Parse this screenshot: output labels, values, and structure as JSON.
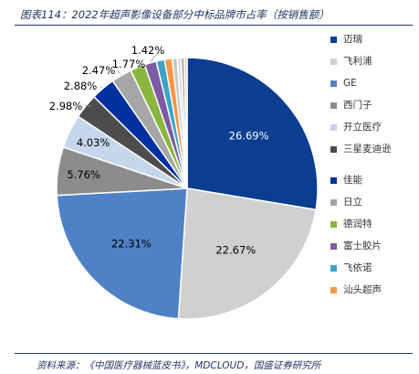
{
  "title": "图表114：2022年超声影像设备部分中标品牌市占率（按销售额）",
  "source": "资料来源：《中国医疗器械蓝皮书》，MDCLOUD，国盛证券研究所",
  "chart_data": {
    "type": "pie",
    "start_angle_deg": 0,
    "direction": "clockwise",
    "slices": [
      {
        "label": "迈瑞",
        "value": 26.69,
        "display": "26.69%",
        "color": "#0b3d91",
        "label_color": "#ffffff"
      },
      {
        "label": "飞利浦",
        "value": 22.67,
        "display": "22.67%",
        "color": "#d0d0d0",
        "label_color": "#000000"
      },
      {
        "label": "GE",
        "value": 22.31,
        "display": "22.31%",
        "color": "#4f81c7",
        "label_color": "#000000"
      },
      {
        "label": "西门子",
        "value": 5.76,
        "display": "5.76%",
        "color": "#8c8c8c",
        "label_color": "#000000"
      },
      {
        "label": "开立医疗",
        "value": 4.03,
        "display": "4.03%",
        "color": "#c6d6ec",
        "label_color": "#000000"
      },
      {
        "label": "三星麦迪逊",
        "value": 2.98,
        "display": "2.98%",
        "color": "#4d4d4d",
        "label_color": "#000000"
      },
      {
        "label": "佳能",
        "value": 2.88,
        "display": "2.88%",
        "color": "#002fa0",
        "label_color": "#000000"
      },
      {
        "label": "日立",
        "value": 2.47,
        "display": "2.47%",
        "color": "#a6a6a6",
        "label_color": "#000000"
      },
      {
        "label": "德润特",
        "value": 1.77,
        "display": "1.77%",
        "color": "#8ab63f",
        "label_color": "#000000"
      },
      {
        "label": "富士胶片",
        "value": 1.42,
        "display": "1.42%",
        "color": "#7b5ba6",
        "label_color": "#000000"
      },
      {
        "label": "飞依诺",
        "value": 1.0,
        "display": "",
        "color": "#3ba3c8",
        "label_color": "#000000"
      },
      {
        "label": "汕头超声",
        "value": 0.9,
        "display": "",
        "color": "#f79646",
        "label_color": "#000000"
      },
      {
        "label": "",
        "value": 0.6,
        "display": "",
        "color": "#c8c8c8",
        "label_color": "#000000"
      },
      {
        "label": "",
        "value": 0.45,
        "display": "",
        "color": "#dcdcdc",
        "label_color": "#000000"
      },
      {
        "label": "",
        "value": 0.4,
        "display": "",
        "color": "#a8a8a8",
        "label_color": "#000000"
      },
      {
        "label": "",
        "value": 0.33,
        "display": "",
        "color": "#e8c8a8",
        "label_color": "#000000"
      }
    ],
    "legend": {
      "position": "right",
      "items": [
        {
          "label": "迈瑞",
          "color": "#0b3d91"
        },
        {
          "label": "飞利浦",
          "color": "#d0d0d0"
        },
        {
          "label": "GE",
          "color": "#4f81c7"
        },
        {
          "label": "西门子",
          "color": "#8c8c8c"
        },
        {
          "label": "开立医疗",
          "color": "#c6d6ec"
        },
        {
          "label": "三星麦迪逊",
          "color": "#4d4d4d"
        },
        {
          "label": "佳能",
          "color": "#002fa0"
        },
        {
          "label": "日立",
          "color": "#a6a6a6"
        },
        {
          "label": "德润特",
          "color": "#8ab63f"
        },
        {
          "label": "富士胶片",
          "color": "#7b5ba6"
        },
        {
          "label": "飞依诺",
          "color": "#3ba3c8"
        },
        {
          "label": "汕头超声",
          "color": "#f79646"
        }
      ]
    }
  }
}
